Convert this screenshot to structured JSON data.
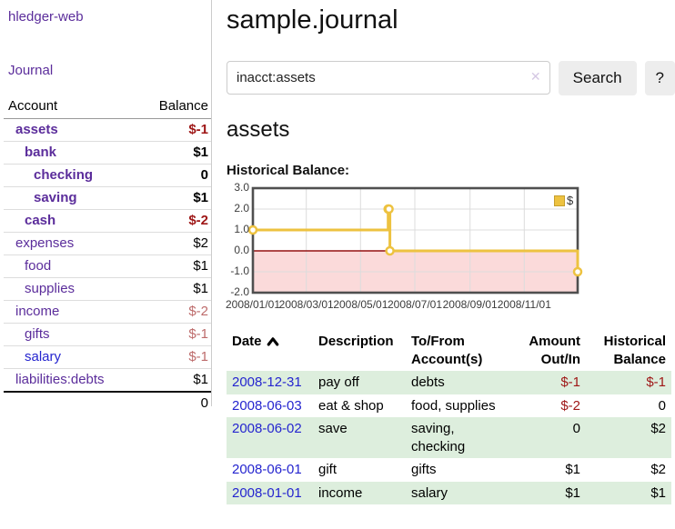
{
  "sidebar": {
    "brand": "hledger-web",
    "journal_link": "Journal",
    "accounts_table": {
      "headers": [
        "Account",
        "Balance"
      ],
      "rows": [
        {
          "account": "assets",
          "depth": 1,
          "bold": true,
          "link_color": "purple",
          "balance": "$-1",
          "balance_style": "neg-strong"
        },
        {
          "account": "bank",
          "depth": 2,
          "bold": true,
          "link_color": "purple",
          "balance": "$1",
          "balance_style": "pos"
        },
        {
          "account": "checking",
          "depth": 3,
          "bold": true,
          "link_color": "purple",
          "balance": "0",
          "balance_style": "pos"
        },
        {
          "account": "saving",
          "depth": 3,
          "bold": true,
          "link_color": "purple",
          "balance": "$1",
          "balance_style": "pos"
        },
        {
          "account": "cash",
          "depth": 2,
          "bold": true,
          "link_color": "purple",
          "balance": "$-2",
          "balance_style": "neg-strong"
        },
        {
          "account": "expenses",
          "depth": 1,
          "bold": false,
          "link_color": "purple",
          "balance": "$2",
          "balance_style": "pos"
        },
        {
          "account": "food",
          "depth": 2,
          "bold": false,
          "link_color": "purple",
          "balance": "$1",
          "balance_style": "pos"
        },
        {
          "account": "supplies",
          "depth": 2,
          "bold": false,
          "link_color": "purple",
          "balance": "$1",
          "balance_style": "pos"
        },
        {
          "account": "income",
          "depth": 1,
          "bold": false,
          "link_color": "purple",
          "balance": "$-2",
          "balance_style": "neg-soft"
        },
        {
          "account": "gifts",
          "depth": 2,
          "bold": false,
          "link_color": "purple",
          "balance": "$-1",
          "balance_style": "neg-soft"
        },
        {
          "account": "salary",
          "depth": 2,
          "bold": false,
          "link_color": "blue",
          "balance": "$-1",
          "balance_style": "neg-soft"
        },
        {
          "account": "liabilities:debts",
          "depth": 1,
          "bold": false,
          "link_color": "purple",
          "balance": "$1",
          "balance_style": "pos"
        }
      ],
      "total": "0"
    }
  },
  "header": {
    "title": "sample.journal"
  },
  "search": {
    "value": "inacct:assets",
    "clear_icon": "✕",
    "button_label": "Search",
    "help_label": "?"
  },
  "account_page": {
    "heading": "assets"
  },
  "chart_data": {
    "type": "line",
    "step": true,
    "title": "Historical Balance:",
    "xlim": [
      "2008-01-01",
      "2008-12-31"
    ],
    "ylim": [
      -2,
      3
    ],
    "x_ticks": [
      {
        "date": "2008-01-01",
        "label": "2008/01/01"
      },
      {
        "date": "2008-03-01",
        "label": "2008/03/01"
      },
      {
        "date": "2008-05-01",
        "label": "2008/05/01"
      },
      {
        "date": "2008-07-01",
        "label": "2008/07/01"
      },
      {
        "date": "2008-09-01",
        "label": "2008/09/01"
      },
      {
        "date": "2008-11-01",
        "label": "2008/11/01"
      }
    ],
    "y_ticks": [
      {
        "value": -2,
        "label": "-2.0"
      },
      {
        "value": -1,
        "label": "-1.0"
      },
      {
        "value": 0,
        "label": "0.0"
      },
      {
        "value": 1,
        "label": "1.0"
      },
      {
        "value": 2,
        "label": "2.0"
      },
      {
        "value": 3,
        "label": "3.0"
      }
    ],
    "series": [
      {
        "name": "$",
        "color": "#edc240",
        "points": [
          [
            "2008-01-01",
            1
          ],
          [
            "2008-06-01",
            2
          ],
          [
            "2008-06-02",
            2
          ],
          [
            "2008-06-03",
            0
          ],
          [
            "2008-12-31",
            -1
          ]
        ]
      }
    ],
    "negative_region_color": "#fbdada",
    "zero_line_color": "#941111",
    "grid_color": "#dcdcdc",
    "border_color": "#4f4f4f",
    "legend": {
      "label": "$",
      "swatch_color": "#edc240",
      "position": "top-right"
    }
  },
  "register": {
    "headers": [
      "Date",
      "Description",
      "To/From Account(s)",
      "Amount Out/In",
      "Historical Balance"
    ],
    "sort_column": "Date",
    "sort_direction": "ascending",
    "rows": [
      {
        "date": "2008-12-31",
        "description": "pay off",
        "accounts": "debts",
        "amount": "$-1",
        "amount_neg": true,
        "balance": "$-1",
        "balance_neg": true,
        "highlight": true
      },
      {
        "date": "2008-06-03",
        "description": "eat & shop",
        "accounts": "food, supplies",
        "amount": "$-2",
        "amount_neg": true,
        "balance": "0",
        "balance_neg": false,
        "highlight": false
      },
      {
        "date": "2008-06-02",
        "description": "save",
        "accounts": "saving, checking",
        "amount": "0",
        "amount_neg": false,
        "balance": "$2",
        "balance_neg": false,
        "highlight": true
      },
      {
        "date": "2008-06-01",
        "description": "gift",
        "accounts": "gifts",
        "amount": "$1",
        "amount_neg": false,
        "balance": "$2",
        "balance_neg": false,
        "highlight": false
      },
      {
        "date": "2008-01-01",
        "description": "income",
        "accounts": "salary",
        "amount": "$1",
        "amount_neg": false,
        "balance": "$1",
        "balance_neg": false,
        "highlight": true
      }
    ]
  },
  "colors": {
    "link_purple": "#5b2d9b",
    "link_blue": "#2525cf",
    "negative_strong": "#9e1616",
    "negative_soft": "#bd6b6b",
    "row_stripe_green": "#ddeedd",
    "button_bg": "#ededed",
    "divider": "#cccccc"
  }
}
